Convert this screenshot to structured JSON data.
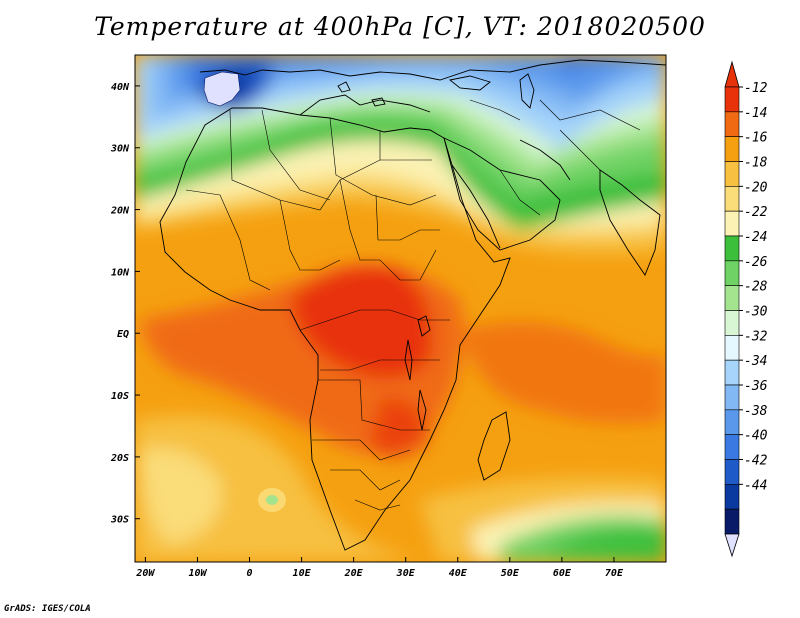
{
  "title": "Temperature at 400hPa [C], VT: 2018020500",
  "footer": "GrADS: IGES/COLA",
  "map": {
    "lon_range": [
      -22,
      80
    ],
    "lat_range": [
      -37,
      45
    ],
    "x_ticks": [
      {
        "lon": -20,
        "label": "20W"
      },
      {
        "lon": -10,
        "label": "10W"
      },
      {
        "lon": 0,
        "label": "0"
      },
      {
        "lon": 10,
        "label": "10E"
      },
      {
        "lon": 20,
        "label": "20E"
      },
      {
        "lon": 30,
        "label": "30E"
      },
      {
        "lon": 40,
        "label": "40E"
      },
      {
        "lon": 50,
        "label": "50E"
      },
      {
        "lon": 60,
        "label": "60E"
      },
      {
        "lon": 70,
        "label": "70E"
      }
    ],
    "y_ticks": [
      {
        "lat": 40,
        "label": "40N"
      },
      {
        "lat": 30,
        "label": "30N"
      },
      {
        "lat": 20,
        "label": "20N"
      },
      {
        "lat": 10,
        "label": "10N"
      },
      {
        "lat": 0,
        "label": "EQ"
      },
      {
        "lat": -10,
        "label": "10S"
      },
      {
        "lat": -20,
        "label": "20S"
      },
      {
        "lat": -30,
        "label": "30S"
      }
    ]
  },
  "colorbar": {
    "labels": [
      "-12",
      "-14",
      "-16",
      "-18",
      "-20",
      "-22",
      "-24",
      "-26",
      "-28",
      "-30",
      "-32",
      "-34",
      "-36",
      "-38",
      "-40",
      "-42",
      "-44"
    ],
    "colors": [
      "#e8320a",
      "#f06a14",
      "#f5a010",
      "#f7c040",
      "#fadc78",
      "#fbf2b4",
      "#3cc03c",
      "#6ed264",
      "#a4e48e",
      "#d8f6d4",
      "#e6f8ff",
      "#a6d4fa",
      "#82b8f4",
      "#5a98ec",
      "#3a78e2",
      "#1e5ac8",
      "#0a3aa0",
      "#081a68"
    ],
    "top_arrow_color": "#e8320a",
    "bottom_arrow_color": "#e0e0ff"
  }
}
